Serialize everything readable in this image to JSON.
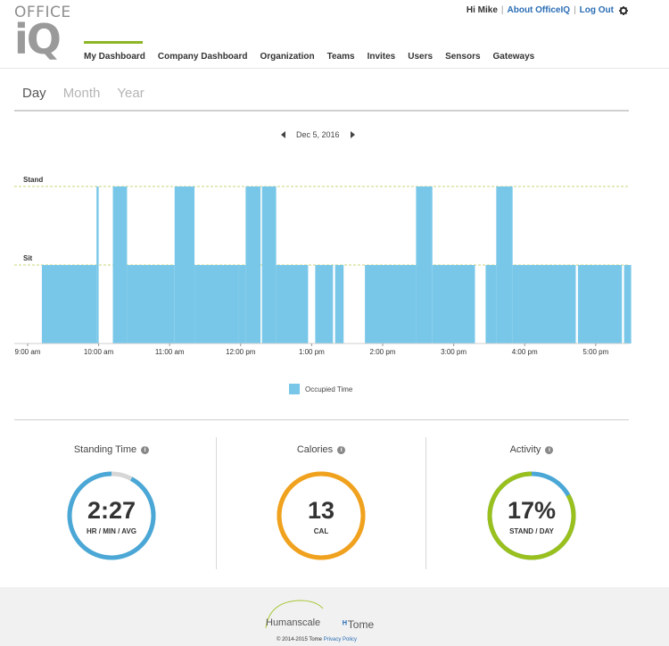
{
  "logo": {
    "line1": "OFFICE",
    "line2": "iQ"
  },
  "header": {
    "greeting": "Hi Mike",
    "about": "About OfficeIQ",
    "logout": "Log Out",
    "settings_icon": "gear-icon"
  },
  "nav": [
    {
      "label": "My Dashboard",
      "active": true
    },
    {
      "label": "Company Dashboard"
    },
    {
      "label": "Organization"
    },
    {
      "label": "Teams"
    },
    {
      "label": "Invites"
    },
    {
      "label": "Users"
    },
    {
      "label": "Sensors"
    },
    {
      "label": "Gateways"
    }
  ],
  "periods": [
    {
      "label": "Day",
      "selected": true
    },
    {
      "label": "Month"
    },
    {
      "label": "Year"
    }
  ],
  "date": "Dec 5, 2016",
  "chart_data": {
    "type": "area",
    "levels": [
      "Sit",
      "Stand"
    ],
    "x_ticks": [
      "9:00 am",
      "10:00 am",
      "11:00 am",
      "12:00 pm",
      "1:00 pm",
      "2:00 pm",
      "3:00 pm",
      "4:00 pm",
      "5:00 pm"
    ],
    "x_range_hours": [
      9.0,
      17.5
    ],
    "colors": {
      "fill": "#79c7e8",
      "guide": "#c9d47a"
    },
    "segments": [
      {
        "start": 9.2,
        "end": 9.97,
        "level": "Sit"
      },
      {
        "start": 9.97,
        "end": 10.0,
        "level": "Stand"
      },
      {
        "start": 10.2,
        "end": 10.4,
        "level": "Stand"
      },
      {
        "start": 10.4,
        "end": 11.07,
        "level": "Sit"
      },
      {
        "start": 11.07,
        "end": 11.35,
        "level": "Stand"
      },
      {
        "start": 11.35,
        "end": 11.97,
        "level": "Sit"
      },
      {
        "start": 11.97,
        "end": 12.07,
        "level": "Sit"
      },
      {
        "start": 12.07,
        "end": 12.28,
        "level": "Stand"
      },
      {
        "start": 12.3,
        "end": 12.5,
        "level": "Stand"
      },
      {
        "start": 12.5,
        "end": 12.95,
        "level": "Sit"
      },
      {
        "start": 13.05,
        "end": 13.3,
        "level": "Sit"
      },
      {
        "start": 13.33,
        "end": 13.45,
        "level": "Sit"
      },
      {
        "start": 13.75,
        "end": 14.47,
        "level": "Sit"
      },
      {
        "start": 14.47,
        "end": 14.7,
        "level": "Stand"
      },
      {
        "start": 14.7,
        "end": 15.3,
        "level": "Sit"
      },
      {
        "start": 15.45,
        "end": 15.6,
        "level": "Sit"
      },
      {
        "start": 15.6,
        "end": 15.83,
        "level": "Stand"
      },
      {
        "start": 15.83,
        "end": 16.72,
        "level": "Sit"
      },
      {
        "start": 16.75,
        "end": 17.37,
        "level": "Sit"
      },
      {
        "start": 17.4,
        "end": 17.5,
        "level": "Sit"
      }
    ],
    "legend": "Occupied Time"
  },
  "stats": [
    {
      "title": "Standing Time",
      "value": "2:27",
      "unit": "HR / MIN / AVG",
      "color": "#4aa7d6",
      "remainder_color": "#d6d6d6",
      "fraction": 0.92
    },
    {
      "title": "Calories",
      "value": "13",
      "unit": "CAL",
      "color": "#f0a21f",
      "remainder_color": "#f0a21f",
      "fraction": 1.0
    },
    {
      "title": "Activity",
      "value": "17%",
      "unit": "STAND / DAY",
      "color": "#9ac01e",
      "remainder_color": "#4aa7d6",
      "fraction": 0.83
    }
  ],
  "footer": {
    "brand1": "Humanscale",
    "brand2": "Tome",
    "copyright": "© 2014-2015 Tome",
    "privacy": "Privacy Policy"
  }
}
